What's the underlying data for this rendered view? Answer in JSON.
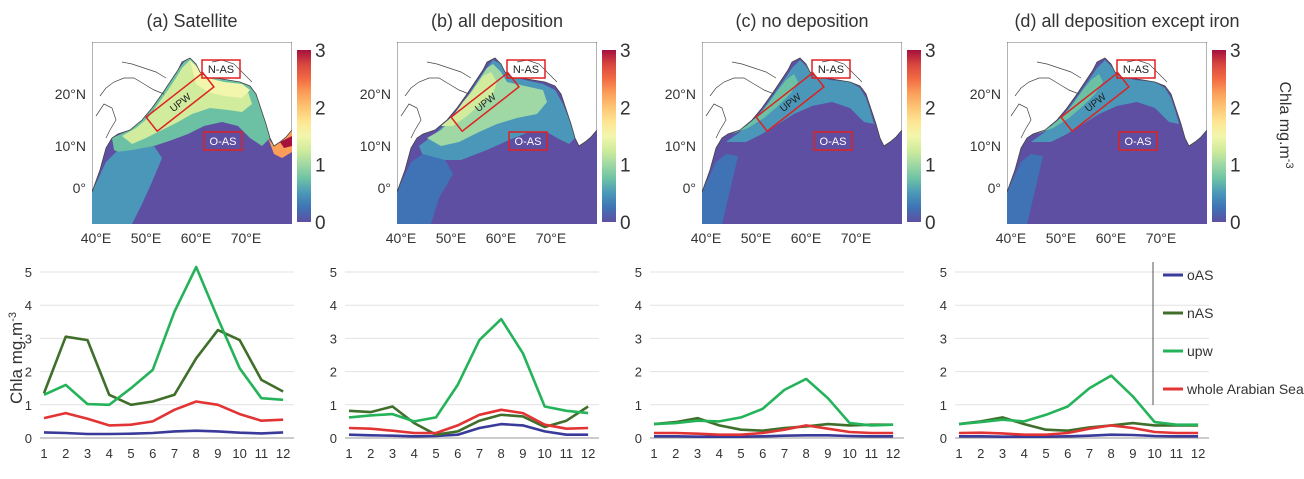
{
  "figure": {
    "panel_titles": [
      "(a) Satellite",
      "(b) all deposition",
      "(c) no deposition",
      "(d) all deposition except iron"
    ],
    "map_lat_ticks": [
      "20°N",
      "10°N",
      "0°"
    ],
    "map_lon_ticks": [
      "40°E",
      "50°E",
      "60°E",
      "70°E"
    ],
    "colorbar_ticks": [
      "0",
      "1",
      "2",
      "3"
    ],
    "colorbar_label": "Chla mg.m",
    "colorbar_label_sup": "-3",
    "colorbar_colors": [
      "#5e4fa2",
      "#3f73b5",
      "#4a97b9",
      "#6cc1a5",
      "#9fd8a4",
      "#d0ec9c",
      "#f2f6ac",
      "#fee593",
      "#fdc574",
      "#fb9e5a",
      "#f26b43",
      "#d8463f",
      "#a5103d"
    ],
    "region_labels": [
      "N-AS",
      "UPW",
      "O-AS"
    ],
    "line_ylabel": "Chla mg.m",
    "line_ylabel_sup": "-3",
    "legend": [
      "oAS",
      "nAS",
      "upw",
      "whole Arabian Sea"
    ]
  },
  "chart_data": [
    {
      "type": "line",
      "title": "(a) Satellite",
      "ylabel": "Chla mg.m-3",
      "x": [
        1,
        2,
        3,
        4,
        5,
        6,
        7,
        8,
        9,
        10,
        11,
        12
      ],
      "ylim": [
        0,
        5
      ],
      "yticks": [
        0,
        1,
        2,
        3,
        4,
        5
      ],
      "series": [
        {
          "name": "oAS",
          "color": "#3a3a9a",
          "values": [
            0.17,
            0.15,
            0.12,
            0.12,
            0.13,
            0.15,
            0.2,
            0.22,
            0.2,
            0.16,
            0.14,
            0.17
          ]
        },
        {
          "name": "nAS",
          "color": "#3f6f2a",
          "values": [
            1.35,
            3.05,
            2.95,
            1.3,
            1.0,
            1.1,
            1.3,
            2.4,
            3.25,
            2.95,
            1.75,
            1.4
          ]
        },
        {
          "name": "upw",
          "color": "#25b35a",
          "values": [
            1.3,
            1.6,
            1.02,
            1.0,
            1.5,
            2.05,
            3.8,
            5.15,
            3.6,
            2.1,
            1.2,
            1.15
          ]
        },
        {
          "name": "whole Arabian Sea",
          "color": "#e23434",
          "values": [
            0.6,
            0.75,
            0.58,
            0.38,
            0.4,
            0.5,
            0.85,
            1.1,
            1.0,
            0.72,
            0.52,
            0.55
          ]
        }
      ]
    },
    {
      "type": "line",
      "title": "(b) all deposition",
      "x": [
        1,
        2,
        3,
        4,
        5,
        6,
        7,
        8,
        9,
        10,
        11,
        12
      ],
      "ylim": [
        0,
        5
      ],
      "yticks": [
        0,
        1,
        2,
        3,
        4,
        5
      ],
      "series": [
        {
          "name": "oAS",
          "color": "#3a3a9a",
          "values": [
            0.1,
            0.08,
            0.07,
            0.05,
            0.06,
            0.1,
            0.3,
            0.42,
            0.38,
            0.2,
            0.1,
            0.1
          ]
        },
        {
          "name": "nAS",
          "color": "#3f6f2a",
          "values": [
            0.82,
            0.78,
            0.95,
            0.45,
            0.1,
            0.2,
            0.52,
            0.7,
            0.65,
            0.33,
            0.52,
            0.95
          ]
        },
        {
          "name": "upw",
          "color": "#25b35a",
          "values": [
            0.62,
            0.68,
            0.72,
            0.5,
            0.62,
            1.6,
            2.95,
            3.58,
            2.55,
            0.95,
            0.82,
            0.75
          ]
        },
        {
          "name": "whole Arabian Sea",
          "color": "#e23434",
          "values": [
            0.3,
            0.28,
            0.22,
            0.15,
            0.15,
            0.38,
            0.7,
            0.85,
            0.75,
            0.4,
            0.28,
            0.3
          ]
        }
      ]
    },
    {
      "type": "line",
      "title": "(c) no deposition",
      "x": [
        1,
        2,
        3,
        4,
        5,
        6,
        7,
        8,
        9,
        10,
        11,
        12
      ],
      "ylim": [
        0,
        5
      ],
      "yticks": [
        0,
        1,
        2,
        3,
        4,
        5
      ],
      "series": [
        {
          "name": "oAS",
          "color": "#3a3a9a",
          "values": [
            0.05,
            0.05,
            0.04,
            0.04,
            0.04,
            0.05,
            0.07,
            0.08,
            0.08,
            0.06,
            0.05,
            0.05
          ]
        },
        {
          "name": "nAS",
          "color": "#3f6f2a",
          "values": [
            0.42,
            0.48,
            0.6,
            0.38,
            0.25,
            0.22,
            0.3,
            0.35,
            0.42,
            0.38,
            0.4,
            0.4
          ]
        },
        {
          "name": "upw",
          "color": "#25b35a",
          "values": [
            0.42,
            0.45,
            0.52,
            0.5,
            0.62,
            0.88,
            1.45,
            1.78,
            1.2,
            0.45,
            0.38,
            0.4
          ]
        },
        {
          "name": "whole Arabian Sea",
          "color": "#e23434",
          "values": [
            0.15,
            0.15,
            0.13,
            0.1,
            0.1,
            0.15,
            0.25,
            0.38,
            0.28,
            0.18,
            0.15,
            0.15
          ]
        }
      ]
    },
    {
      "type": "line",
      "title": "(d) all deposition except iron",
      "x": [
        1,
        2,
        3,
        4,
        5,
        6,
        7,
        8,
        9,
        10,
        11,
        12
      ],
      "ylim": [
        0,
        5
      ],
      "yticks": [
        0,
        1,
        2,
        3,
        4,
        5
      ],
      "series": [
        {
          "name": "oAS",
          "color": "#3a3a9a",
          "values": [
            0.05,
            0.05,
            0.04,
            0.04,
            0.04,
            0.05,
            0.07,
            0.1,
            0.09,
            0.06,
            0.05,
            0.05
          ]
        },
        {
          "name": "nAS",
          "color": "#3f6f2a",
          "values": [
            0.42,
            0.5,
            0.62,
            0.42,
            0.25,
            0.22,
            0.32,
            0.38,
            0.45,
            0.38,
            0.38,
            0.38
          ]
        },
        {
          "name": "upw",
          "color": "#25b35a",
          "values": [
            0.42,
            0.48,
            0.55,
            0.5,
            0.7,
            0.95,
            1.5,
            1.88,
            1.25,
            0.48,
            0.4,
            0.4
          ]
        },
        {
          "name": "whole Arabian Sea",
          "color": "#e23434",
          "values": [
            0.15,
            0.16,
            0.14,
            0.1,
            0.1,
            0.15,
            0.28,
            0.38,
            0.3,
            0.18,
            0.15,
            0.15
          ]
        }
      ]
    }
  ]
}
